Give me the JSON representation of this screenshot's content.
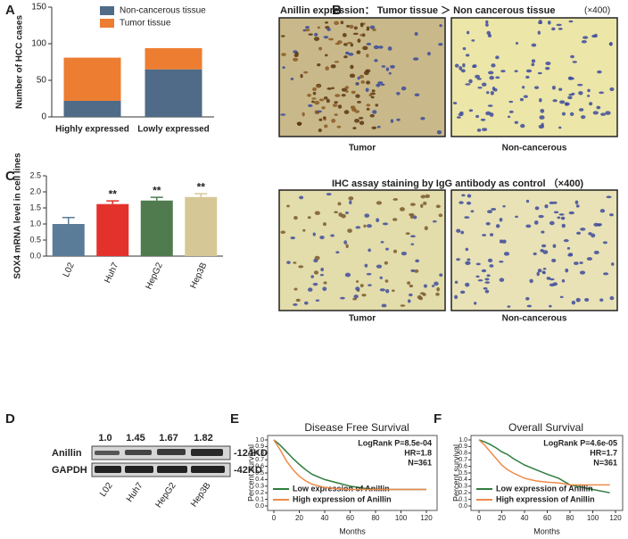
{
  "panels": [
    "A",
    "B",
    "C",
    "D",
    "E",
    "F"
  ],
  "chart_data": [
    {
      "type": "stacked_bar",
      "ylabel": "Number of HCC cases",
      "categories": [
        "Highly expressed",
        "Lowly expressed"
      ],
      "series": [
        {
          "name": "Non-cancerous tissue",
          "color": "#4f6b87",
          "values": [
            22,
            65
          ]
        },
        {
          "name": "Tumor tissue",
          "color": "#ed7d31",
          "values": [
            59,
            29
          ]
        }
      ],
      "ylim": [
        0,
        150
      ],
      "yticks": [
        0,
        50,
        100,
        150
      ]
    },
    {
      "type": "bar_error",
      "ylabel": "SOX4 mRNA level in cell lines",
      "categories": [
        "L02",
        "Huh7",
        "HepG2",
        "Hep3B"
      ],
      "values": [
        1.0,
        1.62,
        1.73,
        1.84
      ],
      "errors": [
        0.2,
        0.1,
        0.1,
        0.1
      ],
      "colors": [
        "#5b7c98",
        "#e3322b",
        "#4f7b4f",
        "#d6c896"
      ],
      "significance": [
        null,
        "**",
        "**",
        "**"
      ],
      "ylim": [
        0,
        2.5
      ],
      "yticks": [
        {
          "value": 0,
          "label": "0.0"
        },
        {
          "value": 0.5,
          "label": "0.5"
        },
        {
          "value": 1,
          "label": "1.0"
        },
        {
          "value": 1.5,
          "label": "1.5"
        },
        {
          "value": 2,
          "label": "2.0"
        },
        {
          "value": 2.5,
          "label": "2.5"
        }
      ]
    },
    {
      "type": "survival",
      "title": "Disease Free Survival",
      "xlabel": "Months",
      "ylabel": "Percent survival",
      "annotations": [
        "LogRank P=8.5e-04",
        "HR=1.8",
        "N=361"
      ],
      "x": [
        0,
        5,
        10,
        15,
        20,
        25,
        30,
        40,
        50,
        60,
        70,
        80,
        100,
        120
      ],
      "series": [
        {
          "name": "Low expression of Anillin",
          "color": "#2e7d3e",
          "values": [
            1,
            0.92,
            0.82,
            0.72,
            0.63,
            0.55,
            0.48,
            0.4,
            0.35,
            0.3,
            0.27,
            0.25,
            0.25,
            0.25
          ]
        },
        {
          "name": "High expression of Anillin",
          "color": "#ee8a4a",
          "values": [
            1,
            0.85,
            0.68,
            0.55,
            0.45,
            0.38,
            0.33,
            0.28,
            0.26,
            0.25,
            0.25,
            0.25,
            0.25,
            0.25
          ]
        }
      ],
      "xlim": [
        0,
        120
      ],
      "xticks": [
        0,
        20,
        40,
        60,
        80,
        100,
        120
      ],
      "ylim": [
        0,
        1
      ],
      "yticks": [
        {
          "value": 0,
          "label": "0.0"
        },
        {
          "value": 0.1,
          "label": "0.1"
        },
        {
          "value": 0.2,
          "label": "0.2"
        },
        {
          "value": 0.3,
          "label": "0.3"
        },
        {
          "value": 0.4,
          "label": "0.4"
        },
        {
          "value": 0.5,
          "label": "0.5"
        },
        {
          "value": 0.6,
          "label": "0.6"
        },
        {
          "value": 0.7,
          "label": "0.7"
        },
        {
          "value": 0.8,
          "label": "0.8"
        },
        {
          "value": 0.9,
          "label": "0.9"
        },
        {
          "value": 1,
          "label": "1.0"
        }
      ]
    },
    {
      "type": "survival",
      "title": "Overall Survival",
      "xlabel": "Months",
      "ylabel": "Percent survival",
      "annotations": [
        "LogRank P=4.6e-05",
        "HR=1.7",
        "N=361"
      ],
      "x": [
        0,
        5,
        10,
        15,
        20,
        25,
        30,
        40,
        50,
        60,
        70,
        80,
        100,
        115
      ],
      "series": [
        {
          "name": "Low expression of Anillin",
          "color": "#2e7d3e",
          "values": [
            1,
            0.97,
            0.93,
            0.88,
            0.82,
            0.78,
            0.72,
            0.62,
            0.55,
            0.48,
            0.42,
            0.32,
            0.25,
            0.2
          ]
        },
        {
          "name": "High expression of Anillin",
          "color": "#ee8a4a",
          "values": [
            1,
            0.92,
            0.82,
            0.72,
            0.62,
            0.55,
            0.5,
            0.42,
            0.38,
            0.36,
            0.35,
            0.32,
            0.32,
            0.32
          ]
        }
      ],
      "xlim": [
        0,
        120
      ],
      "xticks": [
        0,
        20,
        40,
        60,
        80,
        100,
        120
      ],
      "ylim": [
        0,
        1
      ],
      "yticks": [
        {
          "value": 0,
          "label": "0.0"
        },
        {
          "value": 0.1,
          "label": "0.1"
        },
        {
          "value": 0.2,
          "label": "0.2"
        },
        {
          "value": 0.3,
          "label": "0.3"
        },
        {
          "value": 0.4,
          "label": "0.4"
        },
        {
          "value": 0.5,
          "label": "0.5"
        },
        {
          "value": 0.6,
          "label": "0.6"
        },
        {
          "value": 0.7,
          "label": "0.7"
        },
        {
          "value": 0.8,
          "label": "0.8"
        },
        {
          "value": 0.9,
          "label": "0.9"
        },
        {
          "value": 1,
          "label": "1.0"
        }
      ]
    }
  ],
  "ihc": {
    "title1": "Anillin expression：  Tumor tissue ＞ Non cancerous tissue",
    "mag1": "(×400)",
    "title2": "IHC assay staining by IgG antibody as control （×400)",
    "captions": [
      "Tumor",
      "Non-cancerous",
      "Tumor",
      "Non-cancerous"
    ]
  },
  "blot": {
    "quantities": [
      "1.0",
      "1.45",
      "1.67",
      "1.82"
    ],
    "rows": [
      "Anillin",
      "GAPDH"
    ],
    "sizes": [
      "-124KD",
      "-42KD"
    ],
    "lanes": [
      "L02",
      "Huh7",
      "HepG2",
      "Hep3B"
    ]
  }
}
